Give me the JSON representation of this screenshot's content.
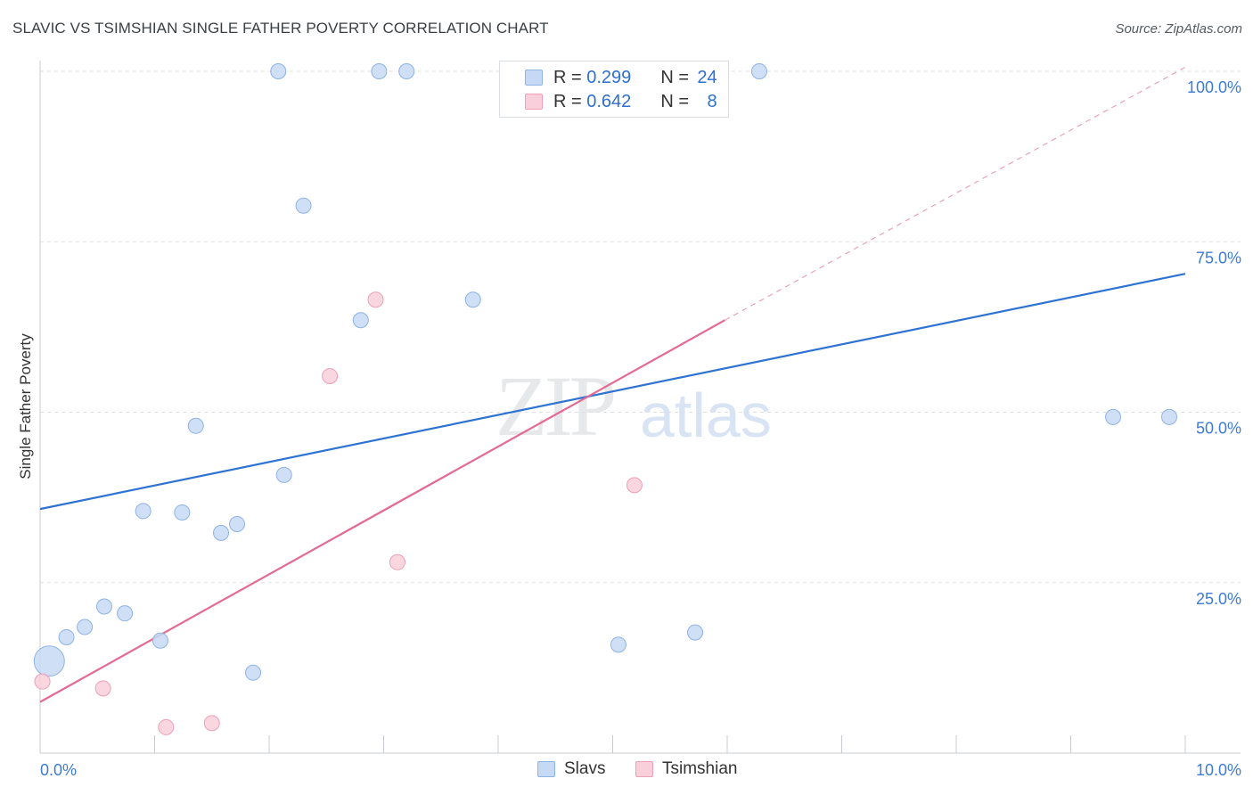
{
  "header": {
    "title": "SLAVIC VS TSIMSHIAN SINGLE FATHER POVERTY CORRELATION CHART",
    "source": "Source: ZipAtlas.com"
  },
  "watermark": {
    "zip": "ZIP",
    "atlas": "atlas"
  },
  "legend": {
    "rows": [
      {
        "r_label": "R =",
        "r_value": "0.299",
        "n_label": "N =",
        "n_value": "24"
      },
      {
        "r_label": "R =",
        "r_value": "0.642",
        "n_label": "N =",
        "n_value": "8"
      }
    ]
  },
  "bottom_legend": [
    "Slavs",
    "Tsimshian"
  ],
  "colors": {
    "slavs_fill": "#c5d9f5",
    "slavs_stroke": "#8fb3e3",
    "slavs_line": "#2e73d2",
    "tsim_fill": "#f8cfdb",
    "tsim_stroke": "#eea0b7",
    "tsim_line": "#e36a92",
    "grid": "#dde1e6",
    "tick_label": "#3d7bd6"
  },
  "chart_data": {
    "type": "scatter",
    "title": "SLAVIC VS TSIMSHIAN SINGLE FATHER POVERTY CORRELATION CHART",
    "xlabel": "",
    "ylabel": "Single Father Poverty",
    "xlim": [
      0,
      10
    ],
    "ylim": [
      0,
      100
    ],
    "x_tick_labels": [
      "0.0%",
      "10.0%"
    ],
    "y_ticks": [
      25,
      50,
      75,
      100
    ],
    "y_tick_labels": [
      "25.0%",
      "50.0%",
      "75.0%",
      "100.0%"
    ],
    "grid": true,
    "series": [
      {
        "name": "Slavs",
        "points": [
          {
            "x": 0.08,
            "y": 13.5,
            "big": true
          },
          {
            "x": 0.23,
            "y": 17.0
          },
          {
            "x": 0.39,
            "y": 18.5
          },
          {
            "x": 0.56,
            "y": 21.5
          },
          {
            "x": 0.74,
            "y": 20.5
          },
          {
            "x": 0.9,
            "y": 35.5
          },
          {
            "x": 1.05,
            "y": 16.5
          },
          {
            "x": 1.24,
            "y": 35.3
          },
          {
            "x": 1.36,
            "y": 48.0
          },
          {
            "x": 1.58,
            "y": 32.3
          },
          {
            "x": 1.72,
            "y": 33.6
          },
          {
            "x": 1.86,
            "y": 11.8
          },
          {
            "x": 2.08,
            "y": 100.0
          },
          {
            "x": 2.13,
            "y": 40.8
          },
          {
            "x": 2.3,
            "y": 80.3
          },
          {
            "x": 2.8,
            "y": 63.5
          },
          {
            "x": 2.96,
            "y": 100.0
          },
          {
            "x": 3.2,
            "y": 100.0
          },
          {
            "x": 3.78,
            "y": 66.5
          },
          {
            "x": 5.05,
            "y": 15.9
          },
          {
            "x": 5.72,
            "y": 17.7
          },
          {
            "x": 6.28,
            "y": 100.0
          },
          {
            "x": 9.37,
            "y": 49.3
          },
          {
            "x": 9.86,
            "y": 49.3
          }
        ],
        "trend": {
          "x0": 0,
          "y0": 35.8,
          "x1": 10,
          "y1": 70.3
        }
      },
      {
        "name": "Tsimshian",
        "points": [
          {
            "x": 0.02,
            "y": 10.5
          },
          {
            "x": 0.55,
            "y": 9.5
          },
          {
            "x": 1.1,
            "y": 3.8
          },
          {
            "x": 1.5,
            "y": 4.4
          },
          {
            "x": 2.53,
            "y": 55.3
          },
          {
            "x": 2.93,
            "y": 66.5
          },
          {
            "x": 3.12,
            "y": 28.0
          },
          {
            "x": 5.19,
            "y": 39.3
          }
        ],
        "trend": {
          "x0": 0,
          "y0": 7.5,
          "x1": 5.98,
          "y1": 63.5,
          "dash_to_x": 10,
          "dash_to_y": 100.6
        }
      }
    ]
  },
  "axis": {
    "ylabel": "Single Father Poverty"
  }
}
